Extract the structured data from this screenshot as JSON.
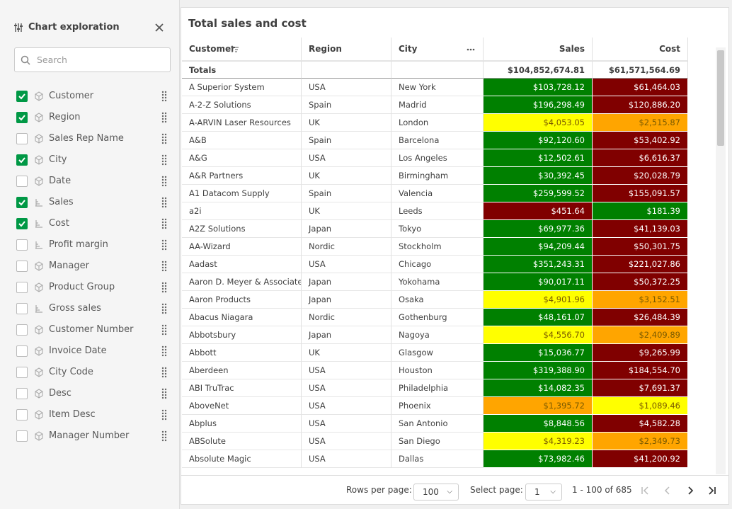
{
  "sidebar": {
    "title": "Chart exploration",
    "search_placeholder": "Search",
    "fields": [
      {
        "label": "Customer",
        "checked": true,
        "kind": "dimension"
      },
      {
        "label": "Region",
        "checked": true,
        "kind": "dimension"
      },
      {
        "label": "Sales Rep Name",
        "checked": false,
        "kind": "dimension"
      },
      {
        "label": "City",
        "checked": true,
        "kind": "dimension"
      },
      {
        "label": "Date",
        "checked": false,
        "kind": "dimension"
      },
      {
        "label": "Sales",
        "checked": true,
        "kind": "measure"
      },
      {
        "label": "Cost",
        "checked": true,
        "kind": "measure"
      },
      {
        "label": "Profit margin",
        "checked": false,
        "kind": "measure"
      },
      {
        "label": "Manager",
        "checked": false,
        "kind": "dimension"
      },
      {
        "label": "Product Group",
        "checked": false,
        "kind": "dimension"
      },
      {
        "label": "Gross sales",
        "checked": false,
        "kind": "measure"
      },
      {
        "label": "Customer Number",
        "checked": false,
        "kind": "dimension"
      },
      {
        "label": "Invoice Date",
        "checked": false,
        "kind": "dimension"
      },
      {
        "label": "City Code",
        "checked": false,
        "kind": "dimension"
      },
      {
        "label": "Desc",
        "checked": false,
        "kind": "dimension"
      },
      {
        "label": "Item Desc",
        "checked": false,
        "kind": "dimension"
      },
      {
        "label": "Manager Number",
        "checked": false,
        "kind": "dimension"
      }
    ]
  },
  "table": {
    "title": "Total sales and cost",
    "columns": [
      "Customer",
      "Region",
      "City",
      "Sales",
      "Cost"
    ],
    "totals": [
      "Totals",
      "",
      "",
      "$104,852,674.81",
      "$61,571,564.69"
    ],
    "rows": [
      [
        "A Superior System",
        "USA",
        "New York",
        "$103,728.12",
        "$61,464.03"
      ],
      [
        "A-2-Z Solutions",
        "Spain",
        "Madrid",
        "$196,298.49",
        "$120,886.20"
      ],
      [
        "A-ARVIN Laser Resources",
        "UK",
        "London",
        "$4,053.05",
        "$2,515.87"
      ],
      [
        "A&B",
        "Spain",
        "Barcelona",
        "$92,120.60",
        "$53,402.92"
      ],
      [
        "A&G",
        "USA",
        "Los Angeles",
        "$12,502.61",
        "$6,616.37"
      ],
      [
        "A&R Partners",
        "UK",
        "Birmingham",
        "$30,392.45",
        "$20,028.79"
      ],
      [
        "A1 Datacom Supply",
        "Spain",
        "Valencia",
        "$259,599.52",
        "$155,091.57"
      ],
      [
        "a2i",
        "UK",
        "Leeds",
        "$451.64",
        "$181.39"
      ],
      [
        "A2Z Solutions",
        "Japan",
        "Tokyo",
        "$69,977.36",
        "$41,139.03"
      ],
      [
        "AA-Wizard",
        "Nordic",
        "Stockholm",
        "$94,209.44",
        "$50,301.75"
      ],
      [
        "Aadast",
        "USA",
        "Chicago",
        "$351,243.31",
        "$221,027.86"
      ],
      [
        "Aaron D. Meyer & Associates",
        "Japan",
        "Yokohama",
        "$90,017.11",
        "$50,372.25"
      ],
      [
        "Aaron Products",
        "Japan",
        "Osaka",
        "$4,901.96",
        "$3,152.51"
      ],
      [
        "Abacus Niagara",
        "Nordic",
        "Gothenburg",
        "$48,161.07",
        "$26,484.39"
      ],
      [
        "Abbotsbury",
        "Japan",
        "Nagoya",
        "$4,556.70",
        "$2,409.89"
      ],
      [
        "Abbott",
        "UK",
        "Glasgow",
        "$15,036.77",
        "$9,265.99"
      ],
      [
        "Aberdeen",
        "USA",
        "Houston",
        "$319,388.90",
        "$184,554.70"
      ],
      [
        "ABI TruTrac",
        "USA",
        "Philadelphia",
        "$14,082.35",
        "$7,691.37"
      ],
      [
        "AboveNet",
        "USA",
        "Phoenix",
        "$1,395.72",
        "$1,089.46"
      ],
      [
        "Abplus",
        "USA",
        "San Antonio",
        "$8,848.56",
        "$4,582.28"
      ],
      [
        "ABSolute",
        "USA",
        "San Diego",
        "$4,319.23",
        "$2,349.73"
      ],
      [
        "Absolute Magic",
        "USA",
        "Dallas",
        "$73,982.46",
        "$41,200.92"
      ]
    ],
    "fills": [
      [
        "#008000",
        "#800000"
      ],
      [
        "#008000",
        "#800000"
      ],
      [
        "#ffff00",
        "#ffa500"
      ],
      [
        "#008000",
        "#800000"
      ],
      [
        "#008000",
        "#800000"
      ],
      [
        "#008000",
        "#800000"
      ],
      [
        "#008000",
        "#800000"
      ],
      [
        "#800000",
        "#008000"
      ],
      [
        "#008000",
        "#800000"
      ],
      [
        "#008000",
        "#800000"
      ],
      [
        "#008000",
        "#800000"
      ],
      [
        "#008000",
        "#800000"
      ],
      [
        "#ffff00",
        "#ffa500"
      ],
      [
        "#008000",
        "#800000"
      ],
      [
        "#ffff00",
        "#ffa500"
      ],
      [
        "#008000",
        "#800000"
      ],
      [
        "#008000",
        "#800000"
      ],
      [
        "#008000",
        "#800000"
      ],
      [
        "#ffa500",
        "#ffff00"
      ],
      [
        "#008000",
        "#800000"
      ],
      [
        "#ffff00",
        "#ffa500"
      ],
      [
        "#008000",
        "#800000"
      ]
    ]
  },
  "footer": {
    "rows_per_page_label": "Rows per page:",
    "rows_per_page": "100",
    "select_page_label": "Select page:",
    "page": "1",
    "range": "1 - 100 of 685"
  }
}
